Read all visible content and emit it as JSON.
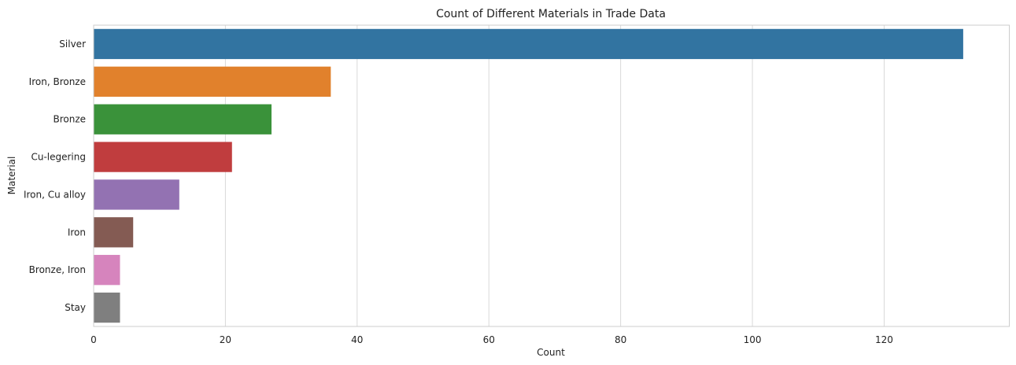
{
  "chart_data": {
    "type": "bar",
    "orientation": "horizontal",
    "title": "Count of Different Materials in Trade Data",
    "xlabel": "Count",
    "ylabel": "Material",
    "categories": [
      "Silver",
      "Iron, Bronze",
      "Bronze",
      "Cu-legering",
      "Iron, Cu alloy",
      "Iron",
      "Bronze, Iron",
      "Stay"
    ],
    "values": [
      132,
      36,
      27,
      21,
      13,
      6,
      4,
      4
    ],
    "colors": [
      "#3274a1",
      "#e1812c",
      "#3a923a",
      "#c03d3e",
      "#9372b2",
      "#845b53",
      "#d684bd",
      "#7f7f7f"
    ],
    "xlim": [
      0,
      139
    ],
    "xticks": [
      0,
      20,
      40,
      60,
      80,
      100,
      120
    ],
    "grid": "vertical",
    "legend": "none"
  }
}
